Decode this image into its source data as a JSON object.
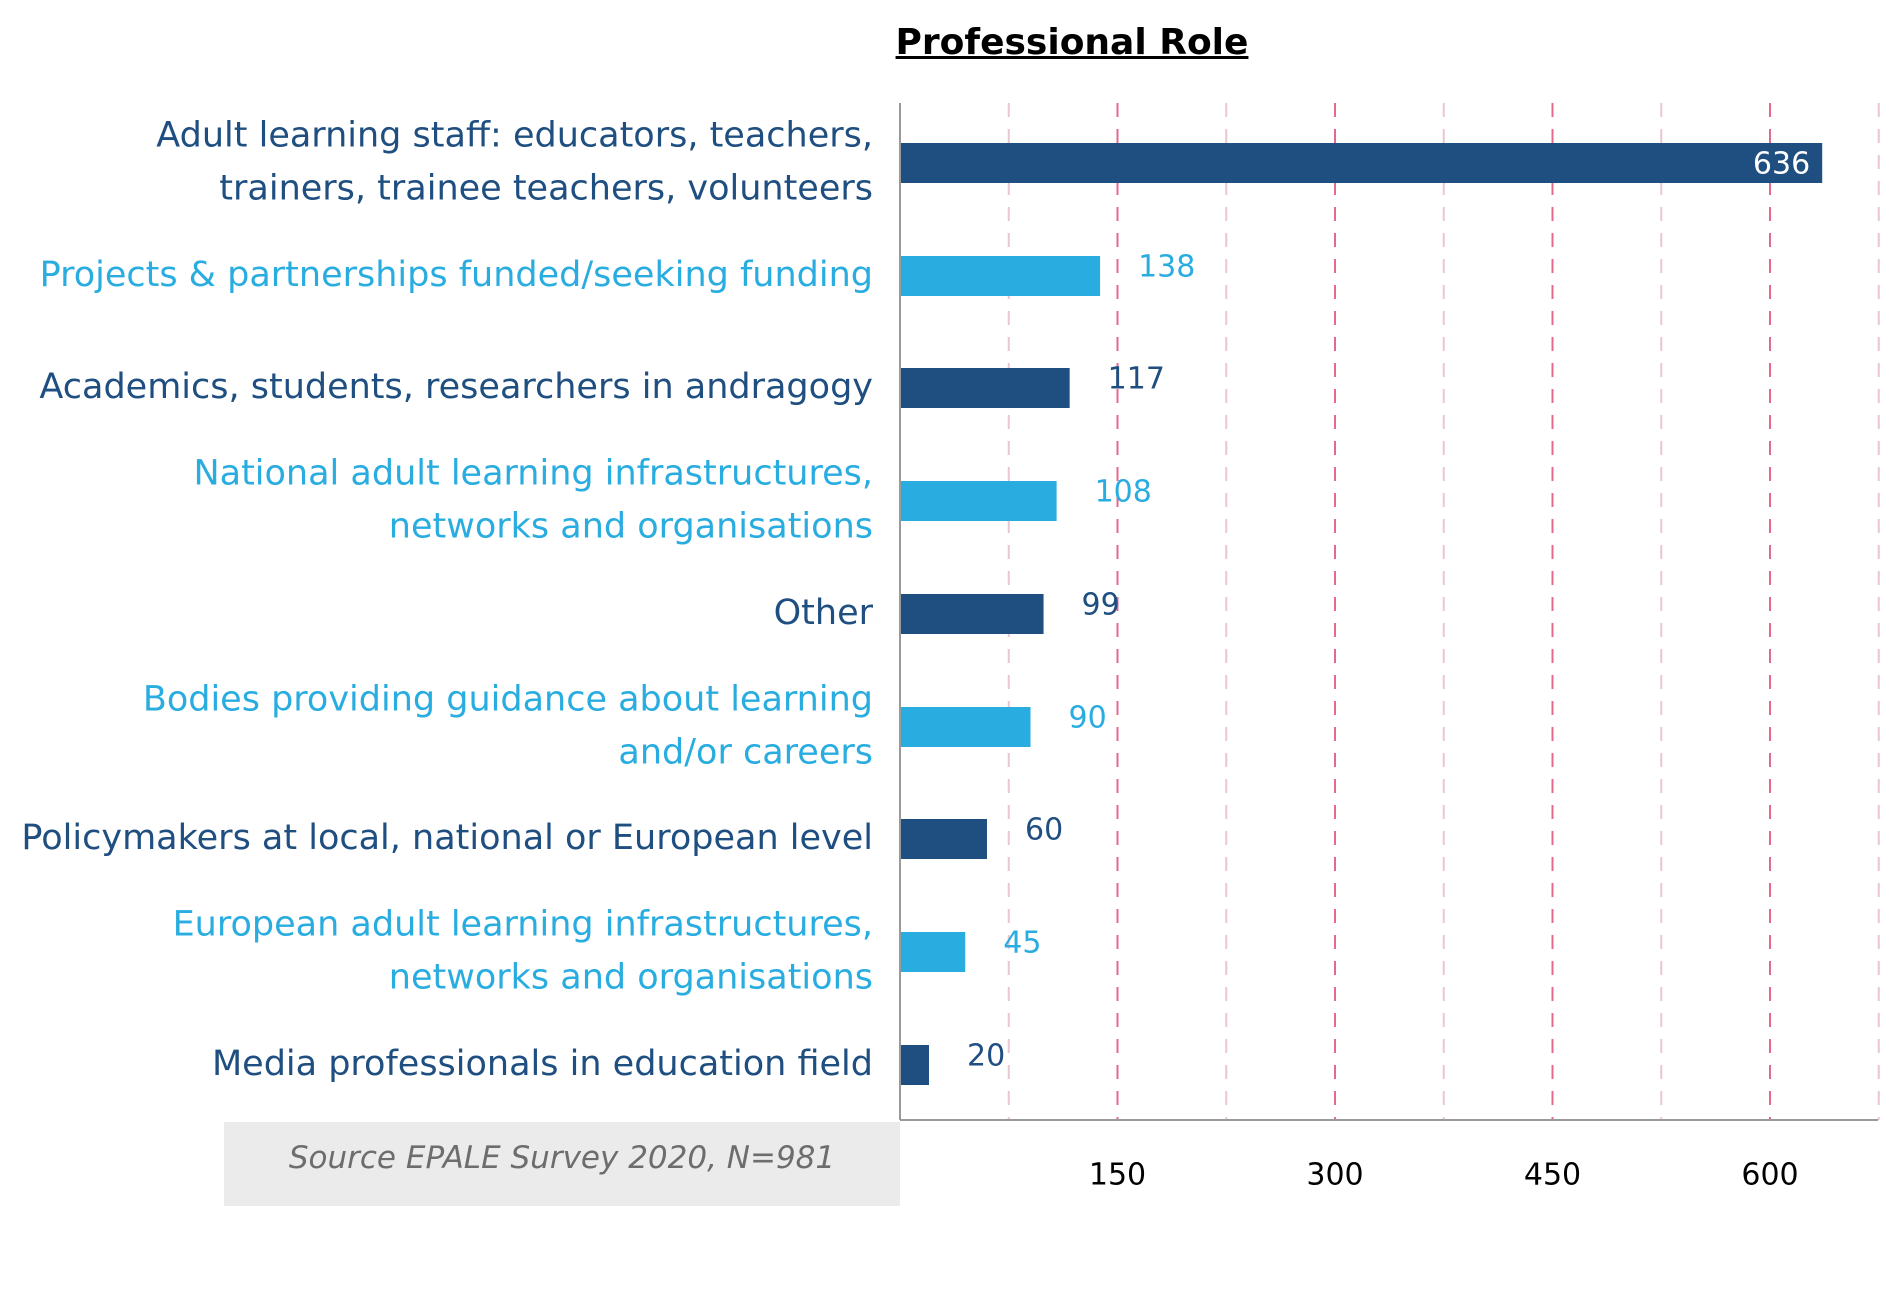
{
  "chart_data": {
    "type": "bar",
    "orientation": "horizontal",
    "title": "Professional Role",
    "categories": [
      [
        "Adult learning staff: educators, teachers,",
        "trainers, trainee teachers, volunteers"
      ],
      [
        "Projects & partnerships funded/seeking funding"
      ],
      [
        "Academics, students, researchers in andragogy"
      ],
      [
        "National adult learning infrastructures,",
        "networks and organisations"
      ],
      [
        "Other"
      ],
      [
        "Bodies providing guidance about learning",
        "and/or careers"
      ],
      [
        "Policymakers at local, national or European level"
      ],
      [
        "European adult learning infrastructures,",
        "networks and organisations"
      ],
      [
        "Media professionals in education field"
      ]
    ],
    "values": [
      636,
      138,
      117,
      108,
      99,
      90,
      60,
      45,
      20
    ],
    "data_labels": [
      "636",
      "138",
      "117",
      "108",
      "99",
      "90",
      "60",
      "45",
      "20"
    ],
    "xlim": [
      0,
      675
    ],
    "x_ticks": [
      150,
      300,
      450,
      600
    ],
    "x_tick_labels": [
      "150",
      "300",
      "450",
      "600"
    ],
    "gridlines": [
      75,
      150,
      225,
      300,
      375,
      450,
      525,
      600,
      675
    ],
    "grid": true,
    "legend": "none",
    "colors": {
      "dark": "#1f4e80",
      "light": "#29ade0",
      "grid": "#e46a8c",
      "grid_light": "#ecc6d2",
      "axis": "#9a9a9a",
      "source_bg": "#ebebeb",
      "source_text": "#6d6d6d"
    }
  },
  "source": "Source EPALE Survey 2020,  N=981"
}
